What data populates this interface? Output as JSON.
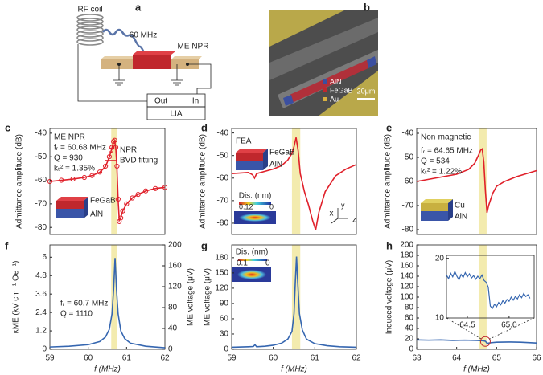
{
  "figure": {
    "panel_labels": [
      "a",
      "b",
      "c",
      "d",
      "e",
      "f",
      "g",
      "h"
    ],
    "schematic": {
      "coil": "RF coil",
      "freq": "60 MHz",
      "device": "ME NPR",
      "out": "Out",
      "in": "In",
      "lia": "LIA"
    },
    "sem": {
      "legend": [
        "AlN",
        "FeGaB",
        "Au"
      ],
      "scale": "20μm"
    }
  },
  "chart_data": [
    {
      "type": "line",
      "ylabel": "Admittance amplitude (dB)",
      "xlim": [
        59,
        62
      ],
      "ylim": [
        -83,
        -38
      ],
      "yticks": [
        -40,
        -50,
        -60,
        -70,
        -80
      ],
      "highlight": [
        60.6,
        60.76
      ],
      "x": [
        59,
        59.3,
        59.6,
        59.9,
        60.1,
        60.3,
        60.45,
        60.55,
        60.62,
        60.66,
        60.69,
        60.72,
        60.75,
        60.78,
        60.81,
        60.85,
        60.9,
        61,
        61.15,
        61.3,
        61.5,
        61.75,
        62
      ],
      "series": [
        {
          "name": "NPR",
          "color": "#e0202a",
          "marker": "circle",
          "values": [
            -60.5,
            -60,
            -59.5,
            -58.8,
            -58,
            -56.5,
            -54,
            -50,
            -46,
            -43.5,
            -43,
            -46,
            -54,
            -68,
            -77.5,
            -76,
            -73,
            -70,
            -67.5,
            -66,
            -64.5,
            -63.5,
            -63
          ]
        },
        {
          "name": "BVD fitting",
          "color": "#e0202a",
          "values": [
            -60.5,
            -60,
            -59.5,
            -58.8,
            -58,
            -56.6,
            -54.2,
            -50.2,
            -46.2,
            -43.6,
            -43.2,
            -46.5,
            -55,
            -68.5,
            -77,
            -75.8,
            -73,
            -70,
            -67.5,
            -66,
            -64.5,
            -63.5,
            -63
          ]
        }
      ],
      "annotations": [
        "ME NPR",
        "fᵣ = 60.68 MHz",
        "Q = 930",
        "kₜ² = 1.35%",
        "FeGaB",
        "AlN"
      ]
    },
    {
      "type": "line",
      "ylabel": "Admittance amplitude (dB)",
      "xlim": [
        59,
        62
      ],
      "ylim": [
        -85,
        -38
      ],
      "yticks": [
        -40,
        -50,
        -60,
        -70,
        -80
      ],
      "highlight": [
        60.45,
        60.65
      ],
      "x": [
        59,
        59.4,
        59.5,
        59.55,
        59.6,
        59.8,
        60,
        60.2,
        60.35,
        60.45,
        60.5,
        60.55,
        60.6,
        60.65,
        60.75,
        60.85,
        60.95,
        61.02,
        61.1,
        61.25,
        61.5,
        61.75,
        62
      ],
      "series": [
        {
          "color": "#e0202a",
          "values": [
            -58,
            -57.5,
            -58.5,
            -60,
            -58,
            -57,
            -56,
            -54.5,
            -52,
            -49,
            -46,
            -42,
            -48,
            -58,
            -66,
            -72,
            -79,
            -83,
            -75,
            -66,
            -59,
            -56,
            -54
          ]
        }
      ],
      "annotations": [
        "FEA",
        "FeGaB",
        "AlN",
        "Dis. (nm)",
        "0.12",
        "0",
        "x",
        "y",
        "z"
      ]
    },
    {
      "type": "line",
      "ylabel": "Admittance amplitude (dB)",
      "xlim": [
        63,
        66
      ],
      "ylim": [
        -82,
        -38
      ],
      "yticks": [
        -40,
        -50,
        -60,
        -70,
        -80
      ],
      "highlight": [
        64.55,
        64.75
      ],
      "x": [
        63,
        63.5,
        64,
        64.3,
        64.45,
        64.55,
        64.6,
        64.64,
        64.68,
        64.72,
        64.76,
        64.8,
        64.9,
        65,
        65.2,
        65.5,
        65.8,
        66
      ],
      "series": [
        {
          "color": "#e0202a",
          "values": [
            -60,
            -58.5,
            -57,
            -55,
            -52.5,
            -49,
            -47,
            -46.5,
            -52,
            -64,
            -73,
            -70,
            -65,
            -62,
            -60,
            -58,
            -56.5,
            -55.5
          ]
        }
      ],
      "annotations": [
        "Non-magnetic",
        "fᵣ = 64.65 MHz",
        "Q = 534",
        "kₜ² = 1.22%",
        "Cu",
        "AlN"
      ]
    },
    {
      "type": "line",
      "ylabel": "κME (kV cm⁻¹ Oe⁻¹)",
      "y2label": "ME voltage (μV)",
      "xlabel": "f (MHz)",
      "xlim": [
        59,
        62
      ],
      "xticks": [
        59,
        60,
        61,
        62
      ],
      "ylim": [
        0,
        6.8
      ],
      "yticks": [
        0,
        1.2,
        2.4,
        3.6,
        4.8,
        6
      ],
      "y2lim": [
        0,
        200
      ],
      "y2ticks": [
        0,
        40,
        80,
        120,
        160,
        200
      ],
      "highlight": [
        60.6,
        60.76
      ],
      "x": [
        59,
        59.5,
        60,
        60.3,
        60.45,
        60.55,
        60.62,
        60.66,
        60.7,
        60.74,
        60.78,
        60.85,
        60.95,
        61.1,
        61.5,
        62
      ],
      "series": [
        {
          "color": "#3566b0",
          "values": [
            0.15,
            0.2,
            0.3,
            0.5,
            0.8,
            1.3,
            2.3,
            3.8,
            5.95,
            3.8,
            2.3,
            1.2,
            0.7,
            0.4,
            0.2,
            0.1
          ]
        }
      ],
      "annotations": [
        "fᵣ = 60.7 MHz",
        "Q = 1110"
      ]
    },
    {
      "type": "line",
      "ylabel": "ME voltage (μV)",
      "xlabel": "f (MHz)",
      "xlim": [
        59,
        62
      ],
      "xticks": [
        59,
        60,
        61,
        62
      ],
      "ylim": [
        0,
        205
      ],
      "yticks": [
        0,
        30,
        60,
        90,
        120,
        150,
        180
      ],
      "highlight": [
        60.45,
        60.65
      ],
      "x": [
        59,
        59.4,
        59.52,
        59.56,
        59.6,
        59.8,
        60,
        60.2,
        60.35,
        60.45,
        60.5,
        60.53,
        60.56,
        60.59,
        60.63,
        60.7,
        60.8,
        61,
        61.3,
        61.6,
        62
      ],
      "series": [
        {
          "color": "#3566b0",
          "values": [
            4,
            5,
            5.5,
            9,
            5,
            6,
            8,
            12,
            20,
            35,
            70,
            130,
            182,
            130,
            70,
            38,
            20,
            11,
            7,
            5,
            4
          ]
        }
      ],
      "annotations": [
        "Dis. (nm)",
        "0.1",
        "0"
      ]
    },
    {
      "type": "line",
      "ylabel": "Induced voltage (μV)",
      "xlabel": "f (MHz)",
      "xlim": [
        63,
        66
      ],
      "xticks": [
        63,
        64,
        65,
        66
      ],
      "ylim": [
        0,
        200
      ],
      "yticks": [
        0,
        20,
        40,
        60,
        80,
        100,
        120,
        140,
        160,
        180,
        200
      ],
      "highlight": [
        64.55,
        64.75
      ],
      "x": [
        63,
        63.3,
        63.6,
        63.9,
        64.2,
        64.5,
        64.65,
        64.72,
        64.76,
        64.85,
        65,
        65.3,
        65.6,
        66
      ],
      "series": [
        {
          "color": "#3566b0",
          "values": [
            18,
            17.5,
            18,
            17,
            17.5,
            17,
            16.5,
            15.5,
            11.5,
            12.5,
            13.5,
            14,
            13.5,
            12
          ]
        }
      ],
      "inset": {
        "xlim": [
          64.25,
          65.3
        ],
        "ylim": [
          10,
          20.5
        ],
        "xticks": [
          64.5,
          {
            "value": 65,
            "label": "65.0"
          }
        ],
        "yticks": [
          10,
          20
        ],
        "x": [
          64.25,
          64.275,
          64.3,
          64.325,
          64.35,
          64.375,
          64.4,
          64.425,
          64.45,
          64.475,
          64.5,
          64.525,
          64.55,
          64.575,
          64.6,
          64.625,
          64.65,
          64.675,
          64.7,
          64.725,
          64.75,
          64.775,
          64.8,
          64.825,
          64.85,
          64.875,
          64.9,
          64.925,
          64.95,
          64.975,
          65,
          65.025,
          65.05,
          65.075,
          65.1,
          65.125,
          65.15,
          65.175,
          65.2,
          65.225,
          65.25
        ],
        "values": [
          17.2,
          16.6,
          17.5,
          16.9,
          17.8,
          17.0,
          16.4,
          17.3,
          16.8,
          17.6,
          16.9,
          17.4,
          16.7,
          17.1,
          16.5,
          17.0,
          16.6,
          17.2,
          16.3,
          16.0,
          15.2,
          12.0,
          11.6,
          12.3,
          11.9,
          12.6,
          12.2,
          12.9,
          12.5,
          13.1,
          12.8,
          13.5,
          13.0,
          13.6,
          13.2,
          13.9,
          13.4,
          14.1,
          13.6,
          13.9,
          13.3
        ]
      }
    }
  ]
}
